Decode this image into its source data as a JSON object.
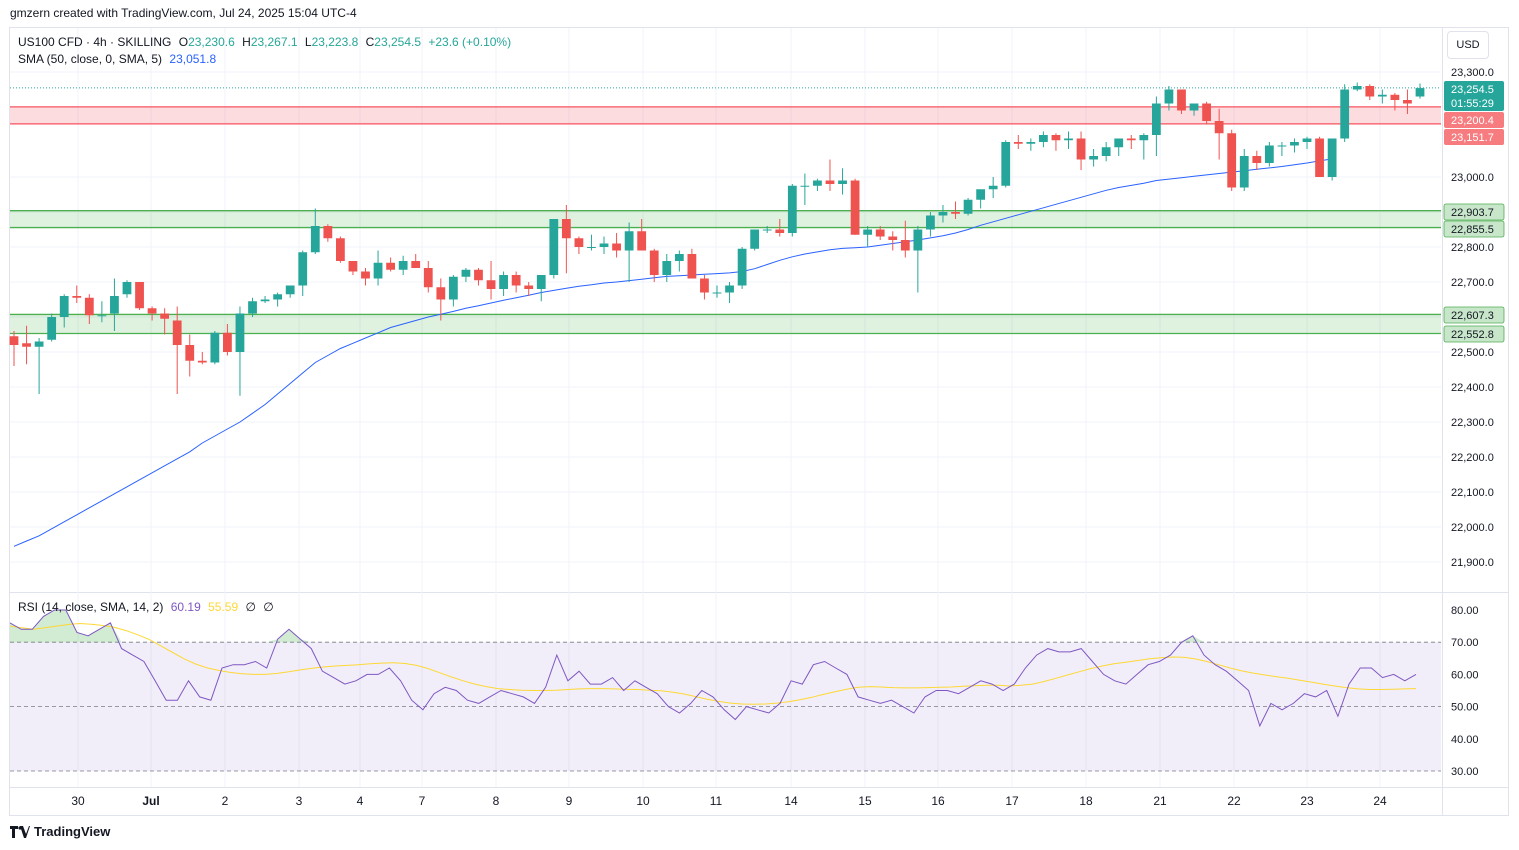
{
  "header": {
    "attribution": "gmzern created with TradingView.com, Jul 24, 2025 15:04 UTC-4"
  },
  "legend": {
    "symbol": "US100 CFD · 4h · SKILLING",
    "o_label": "O",
    "o": "23,230.6",
    "h_label": "H",
    "h": "23,267.1",
    "l_label": "L",
    "l": "23,223.8",
    "c_label": "C",
    "c": "23,254.5",
    "change": "+23.6 (+0.10%)",
    "sma_label": "SMA (50, close, 0, SMA, 5)",
    "sma_value": "23,051.8",
    "rsi_label": "RSI (14, close, SMA, 14, 2)",
    "rsi_value": "60.19",
    "rsi_ma_value": "55.59",
    "rsi_extra1": "∅",
    "rsi_extra2": "∅"
  },
  "currency": "USD",
  "footer": {
    "brand": "TradingView"
  },
  "colors": {
    "up": "#26a69a",
    "down": "#ef5350",
    "sma": "#2962ff",
    "rsi": "#7e57c2",
    "rsi_ma": "#fdd835",
    "res_zone": "#f7525f",
    "sup_zone": "#4caf50"
  },
  "price_labels": {
    "last": "23,254.5",
    "countdown": "01:55:29",
    "res_top": "23,200.4",
    "res_bot": "23,151.7",
    "sup1_top": "22,903.7",
    "sup1_bot": "22,855.5",
    "sup2_top": "22,607.3",
    "sup2_bot": "22,552.8"
  },
  "chart_data": [
    {
      "type": "candlestick",
      "title": "US100 CFD · 4h · SKILLING",
      "ylim": [
        21850,
        23350
      ],
      "yticks": [
        "23,300.0",
        "23,000.0",
        "22,900.0",
        "22,800.0",
        "22,700.0",
        "22,600.0",
        "22,500.0",
        "22,400.0",
        "22,300.0",
        "22,200.0",
        "22,100.0",
        "22,000.0",
        "21,900.0"
      ],
      "ytick_values": [
        23300,
        23000,
        22900,
        22800,
        22700,
        22600,
        22500,
        22400,
        22300,
        22200,
        22100,
        22000,
        21900
      ],
      "xticks": [
        "30",
        "Jul",
        "2",
        "3",
        "4",
        "7",
        "8",
        "9",
        "10",
        "11",
        "14",
        "15",
        "16",
        "17",
        "18",
        "21",
        "22",
        "23",
        "24"
      ],
      "candles": [
        [
          22545,
          22560,
          22460,
          22520
        ],
        [
          22525,
          22575,
          22465,
          22515
        ],
        [
          22515,
          22540,
          22380,
          22530
        ],
        [
          22535,
          22610,
          22530,
          22600
        ],
        [
          22600,
          22665,
          22570,
          22660
        ],
        [
          22660,
          22690,
          22640,
          22655
        ],
        [
          22655,
          22665,
          22580,
          22605
        ],
        [
          22605,
          22645,
          22585,
          22605
        ],
        [
          22610,
          22710,
          22560,
          22660
        ],
        [
          22665,
          22705,
          22655,
          22700
        ],
        [
          22700,
          22700,
          22620,
          22625
        ],
        [
          22625,
          22630,
          22590,
          22610
        ],
        [
          22610,
          22625,
          22550,
          22595
        ],
        [
          22590,
          22630,
          22380,
          22520
        ],
        [
          22520,
          22550,
          22430,
          22475
        ],
        [
          22475,
          22500,
          22465,
          22470
        ],
        [
          22470,
          22560,
          22465,
          22555
        ],
        [
          22555,
          22580,
          22490,
          22500
        ],
        [
          22500,
          22630,
          22375,
          22610
        ],
        [
          22610,
          22655,
          22600,
          22645
        ],
        [
          22645,
          22660,
          22640,
          22650
        ],
        [
          22650,
          22670,
          22630,
          22665
        ],
        [
          22665,
          22690,
          22655,
          22690
        ],
        [
          22690,
          22790,
          22660,
          22785
        ],
        [
          22785,
          22910,
          22780,
          22860
        ],
        [
          22860,
          22865,
          22815,
          22825
        ],
        [
          22825,
          22830,
          22755,
          22760
        ],
        [
          22760,
          22760,
          22720,
          22730
        ],
        [
          22730,
          22740,
          22690,
          22710
        ],
        [
          22710,
          22790,
          22690,
          22755
        ],
        [
          22755,
          22770,
          22730,
          22735
        ],
        [
          22735,
          22775,
          22720,
          22760
        ],
        [
          22760,
          22780,
          22740,
          22740
        ],
        [
          22740,
          22760,
          22670,
          22685
        ],
        [
          22685,
          22710,
          22590,
          22650
        ],
        [
          22650,
          22720,
          22630,
          22715
        ],
        [
          22715,
          22740,
          22700,
          22735
        ],
        [
          22735,
          22740,
          22690,
          22705
        ],
        [
          22705,
          22760,
          22650,
          22680
        ],
        [
          22680,
          22730,
          22660,
          22720
        ],
        [
          22720,
          22730,
          22670,
          22690
        ],
        [
          22690,
          22700,
          22660,
          22680
        ],
        [
          22680,
          22710,
          22645,
          22720
        ],
        [
          22720,
          22880,
          22710,
          22880
        ],
        [
          22880,
          22920,
          22725,
          22825
        ],
        [
          22825,
          22830,
          22780,
          22800
        ],
        [
          22800,
          22835,
          22790,
          22800
        ],
        [
          22800,
          22830,
          22780,
          22810
        ],
        [
          22810,
          22840,
          22770,
          22790
        ],
        [
          22790,
          22870,
          22700,
          22845
        ],
        [
          22845,
          22880,
          22790,
          22790
        ],
        [
          22790,
          22795,
          22700,
          22720
        ],
        [
          22720,
          22780,
          22700,
          22760
        ],
        [
          22760,
          22790,
          22730,
          22780
        ],
        [
          22780,
          22795,
          22710,
          22710
        ],
        [
          22710,
          22720,
          22650,
          22670
        ],
        [
          22670,
          22690,
          22655,
          22670
        ],
        [
          22670,
          22700,
          22640,
          22690
        ],
        [
          22690,
          22800,
          22680,
          22795
        ],
        [
          22795,
          22850,
          22790,
          22850
        ],
        [
          22850,
          22860,
          22840,
          22850
        ],
        [
          22850,
          22880,
          22830,
          22840
        ],
        [
          22840,
          22980,
          22830,
          22975
        ],
        [
          22975,
          23010,
          22920,
          22975
        ],
        [
          22975,
          22995,
          22960,
          22990
        ],
        [
          22990,
          23050,
          22960,
          22980
        ],
        [
          22980,
          23025,
          22950,
          22990
        ],
        [
          22990,
          22995,
          22835,
          22835
        ],
        [
          22835,
          22860,
          22800,
          22850
        ],
        [
          22850,
          22860,
          22820,
          22830
        ],
        [
          22830,
          22845,
          22790,
          22820
        ],
        [
          22820,
          22875,
          22770,
          22790
        ],
        [
          22790,
          22860,
          22670,
          22850
        ],
        [
          22850,
          22900,
          22830,
          22890
        ],
        [
          22890,
          22920,
          22870,
          22900
        ],
        [
          22900,
          22930,
          22880,
          22895
        ],
        [
          22895,
          22940,
          22890,
          22935
        ],
        [
          22935,
          22960,
          22910,
          22965
        ],
        [
          22965,
          23000,
          22940,
          22975
        ],
        [
          22975,
          23105,
          22970,
          23100
        ],
        [
          23100,
          23120,
          23080,
          23095
        ],
        [
          23095,
          23110,
          23075,
          23100
        ],
        [
          23100,
          23130,
          23085,
          23120
        ],
        [
          23120,
          23125,
          23075,
          23105
        ],
        [
          23105,
          23130,
          23080,
          23110
        ],
        [
          23110,
          23130,
          23020,
          23050
        ],
        [
          23050,
          23080,
          23030,
          23060
        ],
        [
          23060,
          23100,
          23045,
          23085
        ],
        [
          23085,
          23110,
          23060,
          23110
        ],
        [
          23110,
          23120,
          23080,
          23105
        ],
        [
          23105,
          23125,
          23050,
          23120
        ],
        [
          23120,
          23230,
          23060,
          23210
        ],
        [
          23210,
          23260,
          23190,
          23250
        ],
        [
          23250,
          23250,
          23180,
          23190
        ],
        [
          23190,
          23210,
          23175,
          23210
        ],
        [
          23210,
          23215,
          23150,
          23160
        ],
        [
          23160,
          23195,
          23050,
          23125
        ],
        [
          23125,
          23135,
          22960,
          22970
        ],
        [
          22970,
          23080,
          22960,
          23060
        ],
        [
          23060,
          23075,
          23020,
          23040
        ],
        [
          23040,
          23100,
          23030,
          23090
        ],
        [
          23090,
          23100,
          23060,
          23090
        ],
        [
          23090,
          23110,
          23070,
          23100
        ],
        [
          23100,
          23115,
          23080,
          23110
        ],
        [
          23110,
          23115,
          23000,
          23000
        ],
        [
          23000,
          23110,
          22990,
          23110
        ],
        [
          23110,
          23265,
          23100,
          23250
        ],
        [
          23250,
          23270,
          23245,
          23260
        ],
        [
          23260,
          23265,
          23220,
          23230
        ],
        [
          23230,
          23250,
          23210,
          23235
        ],
        [
          23235,
          23240,
          23190,
          23220
        ],
        [
          23220,
          23250,
          23180,
          23210
        ],
        [
          23230,
          23267,
          23224,
          23254
        ]
      ],
      "sma": [
        21945,
        21960,
        21975,
        21995,
        22015,
        22035,
        22055,
        22075,
        22095,
        22115,
        22135,
        22155,
        22175,
        22195,
        22215,
        22240,
        22260,
        22280,
        22300,
        22325,
        22350,
        22380,
        22410,
        22440,
        22470,
        22490,
        22510,
        22525,
        22540,
        22555,
        22570,
        22580,
        22590,
        22600,
        22608,
        22616,
        22625,
        22632,
        22640,
        22648,
        22655,
        22662,
        22670,
        22676,
        22682,
        22688,
        22692,
        22697,
        22700,
        22704,
        22708,
        22712,
        22716,
        22718,
        22720,
        22722,
        22724,
        22726,
        22730,
        22738,
        22750,
        22762,
        22772,
        22780,
        22786,
        22792,
        22796,
        22798,
        22800,
        22805,
        22810,
        22815,
        22820,
        22826,
        22832,
        22840,
        22850,
        22862,
        22872,
        22882,
        22892,
        22902,
        22912,
        22922,
        22932,
        22942,
        22952,
        22962,
        22970,
        22976,
        22982,
        22990,
        22994,
        22998,
        23002,
        23006,
        23010,
        23014,
        23018,
        23022,
        23026,
        23030,
        23035,
        23040,
        23046,
        23051.8
      ],
      "zones": [
        {
          "top": 23200.4,
          "bottom": 23151.7
        },
        {
          "top": 22903.7,
          "bottom": 22855.5
        },
        {
          "top": 22607.3,
          "bottom": 22552.8
        }
      ],
      "last_price": 23254.5
    },
    {
      "type": "line",
      "title": "RSI (14, close, SMA, 14, 2)",
      "ylim": [
        28,
        84
      ],
      "yticks": [
        "80.00",
        "70.00",
        "60.00",
        "50.00",
        "40.00",
        "30.00"
      ],
      "ytick_values": [
        80,
        70,
        60,
        50,
        40,
        30
      ],
      "bands": [
        70,
        50,
        30
      ],
      "rsi": [
        76,
        74,
        74,
        78,
        80,
        80,
        73,
        72,
        74,
        76,
        68,
        66,
        64,
        58,
        52,
        52,
        58,
        53,
        52,
        62,
        63,
        63,
        64,
        62,
        71,
        74,
        71,
        68,
        61,
        59,
        57,
        58,
        60,
        60,
        62,
        58,
        52,
        49,
        54,
        56,
        55,
        52,
        51,
        53,
        55,
        54,
        53,
        51,
        56,
        66,
        58,
        61,
        57,
        57,
        59,
        55,
        58,
        56,
        54,
        50,
        48,
        51,
        55,
        53,
        49,
        46,
        50,
        49,
        48,
        51,
        58,
        57,
        63,
        64,
        62,
        60,
        53,
        52,
        51,
        52,
        50,
        48,
        53,
        55,
        55,
        54,
        56,
        58,
        57,
        55,
        57,
        62,
        66,
        68,
        67,
        67,
        68,
        64,
        60,
        58,
        57,
        60,
        63,
        64,
        66,
        70,
        72,
        66,
        63,
        61,
        58,
        55,
        44,
        51,
        49,
        51,
        54,
        53,
        55,
        47,
        57,
        62,
        62,
        59,
        60,
        58,
        60
      ],
      "rsi_ma": [
        75,
        74.5,
        74,
        74.5,
        75,
        75.5,
        75.8,
        75.6,
        75.2,
        74.6,
        73.6,
        72.3,
        70.8,
        68.8,
        66.8,
        64.8,
        63.2,
        62,
        61.2,
        60.6,
        60.2,
        60,
        60,
        60.3,
        60.8,
        61.4,
        61.9,
        62.3,
        62.6,
        62.8,
        63,
        63.3,
        63.5,
        63.6,
        63.4,
        62.8,
        61.8,
        60.5,
        59.2,
        58,
        57,
        56.2,
        55.6,
        55.3,
        55.1,
        55,
        55,
        55.1,
        55.3,
        55.5,
        55.6,
        55.6,
        55.5,
        55.4,
        55.3,
        55.1,
        54.9,
        54.5,
        53.9,
        53.1,
        52.3,
        51.6,
        51.1,
        50.8,
        50.7,
        50.8,
        51.1,
        51.5,
        52.1,
        52.9,
        53.8,
        54.6,
        55.4,
        56,
        56.2,
        56.1,
        55.9,
        55.8,
        55.8,
        55.9,
        56,
        56.1,
        56.3,
        56.5,
        56.6,
        56.6,
        56.4,
        56.6,
        57,
        57.8,
        58.8,
        59.8,
        60.8,
        61.8,
        62.6,
        63.3,
        63.8,
        64.3,
        64.8,
        65.2,
        65.4,
        65.3,
        64.8,
        64,
        63,
        62,
        61.1,
        60.4,
        59.8,
        59.3,
        58.8,
        58.2,
        57.6,
        57,
        56.4,
        55.9,
        55.5,
        55.3,
        55.3,
        55.4,
        55.5,
        55.59
      ]
    }
  ]
}
